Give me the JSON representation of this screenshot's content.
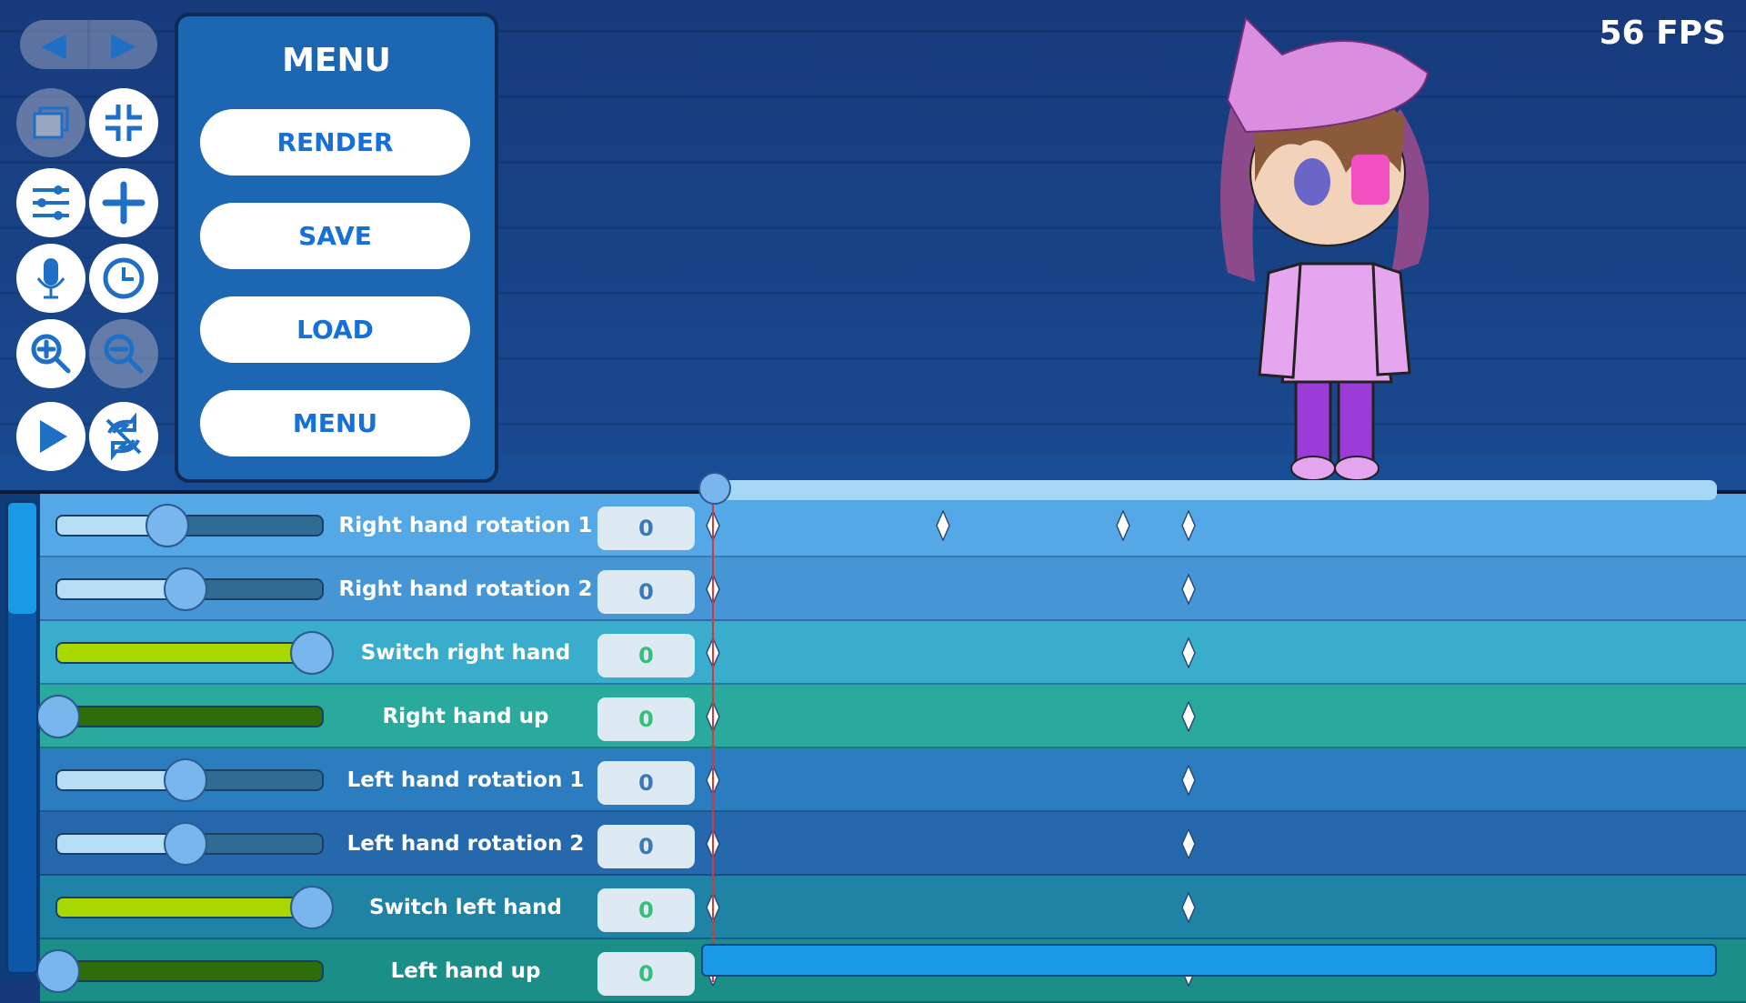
{
  "fps": "56 FPS",
  "nav": {
    "back_icon": "triangle-left",
    "forward_icon": "triangle-right"
  },
  "tools": [
    "window-icon",
    "collapse-icon",
    "sliders-icon",
    "plus-icon",
    "microphone-icon",
    "clock-icon",
    "zoom-in-icon",
    "zoom-out-icon",
    "play-icon",
    "sync-off-icon"
  ],
  "menu": {
    "title": "MENU",
    "buttons": [
      "RENDER",
      "SAVE",
      "LOAD",
      "MENU"
    ]
  },
  "rows": [
    {
      "label": "Right hand rotation 1",
      "value": "0",
      "slider": 0.43,
      "type": "range",
      "color": "#55a8e6",
      "keyframes": [
        0,
        0.23,
        0.41,
        0.475
      ]
    },
    {
      "label": "Right hand rotation 2",
      "value": "0",
      "slider": 0.5,
      "type": "range",
      "color": "#4696d6",
      "keyframes": [
        0,
        0.475
      ]
    },
    {
      "label": "Switch right hand",
      "value": "0",
      "slider": 1,
      "type": "switch",
      "color": "#3aaccc",
      "keyframes": [
        0,
        0.475
      ]
    },
    {
      "label": "Right hand up",
      "value": "0",
      "slider": 0,
      "type": "switch",
      "color": "#2aaa9c",
      "keyframes": [
        0,
        0.475
      ]
    },
    {
      "label": "Left hand rotation 1",
      "value": "0",
      "slider": 0.5,
      "type": "range",
      "color": "#2c7cc0",
      "keyframes": [
        0,
        0.475
      ]
    },
    {
      "label": "Left hand rotation 2",
      "value": "0",
      "slider": 0.5,
      "type": "range",
      "color": "#2568ac",
      "keyframes": [
        0,
        0.475
      ]
    },
    {
      "label": "Switch left hand",
      "value": "0",
      "slider": 1,
      "type": "switch",
      "color": "#1f83a6",
      "keyframes": [
        0,
        0.475
      ]
    },
    {
      "label": "Left hand up",
      "value": "0",
      "slider": 0,
      "type": "switch",
      "color": "#1b8e88",
      "keyframes": [
        0,
        0.475
      ]
    }
  ],
  "colors": {
    "accent": "#1670d8",
    "range_value": "#3b78b8",
    "switch_value": "#33c07a",
    "lime": "#a8d800",
    "dark_green": "#2e6e0a"
  }
}
